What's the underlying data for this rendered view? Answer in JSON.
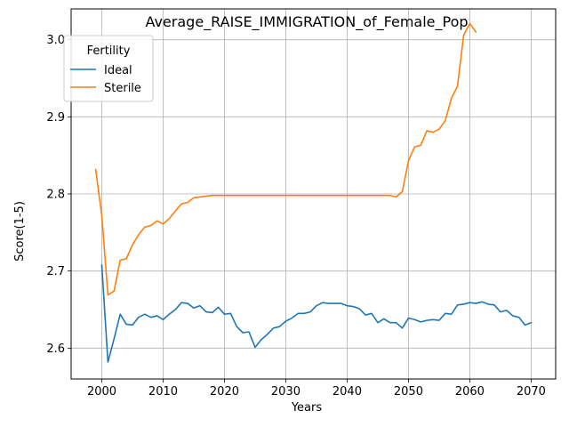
{
  "chart_data": {
    "type": "line",
    "title": "Average_RAISE_IMMIGRATION_of_Female_Pop",
    "xlabel": "Years",
    "ylabel": "Score(1-5)",
    "xlim": [
      1995,
      2074
    ],
    "ylim": [
      2.56,
      3.04
    ],
    "xticks": [
      2000,
      2010,
      2020,
      2030,
      2040,
      2050,
      2060,
      2070
    ],
    "yticks": [
      2.6,
      2.7,
      2.8,
      2.9,
      3.0
    ],
    "xtick_labels": [
      "2000",
      "2010",
      "2020",
      "2030",
      "2040",
      "2050",
      "2060",
      "2070"
    ],
    "ytick_labels": [
      "2.6",
      "2.7",
      "2.8",
      "2.9",
      "3.0"
    ],
    "grid": true,
    "legend": {
      "title": "Fertility",
      "placement": "upper-left"
    },
    "series": [
      {
        "name": "Ideal",
        "color": "#1f77b4",
        "x": [
          2000,
          2001,
          2002,
          2003,
          2004,
          2005,
          2006,
          2007,
          2008,
          2009,
          2010,
          2011,
          2012,
          2013,
          2014,
          2015,
          2016,
          2017,
          2018,
          2019,
          2020,
          2021,
          2022,
          2023,
          2024,
          2025,
          2026,
          2027,
          2028,
          2029,
          2030,
          2031,
          2032,
          2033,
          2034,
          2035,
          2036,
          2037,
          2038,
          2039,
          2040,
          2041,
          2042,
          2043,
          2044,
          2045,
          2046,
          2047,
          2048,
          2049,
          2050,
          2051,
          2052,
          2053,
          2054,
          2055,
          2056,
          2057,
          2058,
          2059,
          2060,
          2061,
          2062,
          2063,
          2064,
          2065,
          2066,
          2067,
          2068,
          2069,
          2070
        ],
        "y": [
          2.708,
          2.582,
          2.612,
          2.644,
          2.631,
          2.63,
          2.64,
          2.644,
          2.64,
          2.642,
          2.637,
          2.644,
          2.65,
          2.659,
          2.658,
          2.652,
          2.655,
          2.647,
          2.646,
          2.653,
          2.644,
          2.645,
          2.628,
          2.62,
          2.621,
          2.601,
          2.611,
          2.618,
          2.626,
          2.628,
          2.635,
          2.639,
          2.645,
          2.645,
          2.647,
          2.655,
          2.659,
          2.658,
          2.658,
          2.658,
          2.655,
          2.654,
          2.651,
          2.643,
          2.645,
          2.633,
          2.638,
          2.633,
          2.633,
          2.626,
          2.639,
          2.637,
          2.634,
          2.636,
          2.637,
          2.636,
          2.645,
          2.644,
          2.656,
          2.657,
          2.659,
          2.658,
          2.66,
          2.657,
          2.656,
          2.647,
          2.649,
          2.642,
          2.64,
          2.63,
          2.633
        ]
      },
      {
        "name": "Sterile",
        "color": "#ff7f0e",
        "x": [
          1999,
          2000,
          2001,
          2002,
          2003,
          2004,
          2005,
          2006,
          2007,
          2008,
          2009,
          2010,
          2011,
          2012,
          2013,
          2014,
          2015,
          2016,
          2017,
          2018,
          2019,
          2020,
          2021,
          2022,
          2023,
          2024,
          2025,
          2026,
          2027,
          2028,
          2029,
          2030,
          2031,
          2032,
          2033,
          2034,
          2035,
          2036,
          2037,
          2038,
          2039,
          2040,
          2041,
          2042,
          2043,
          2044,
          2045,
          2046,
          2047,
          2048,
          2049,
          2050,
          2051,
          2052,
          2053,
          2054,
          2055,
          2056,
          2057,
          2058,
          2059,
          2060,
          2061
        ],
        "y": [
          2.832,
          2.772,
          2.669,
          2.674,
          2.714,
          2.716,
          2.734,
          2.747,
          2.757,
          2.759,
          2.765,
          2.761,
          2.768,
          2.778,
          2.787,
          2.789,
          2.795,
          2.796,
          2.797,
          2.798,
          2.798,
          2.798,
          2.798,
          2.798,
          2.798,
          2.798,
          2.798,
          2.798,
          2.798,
          2.798,
          2.798,
          2.798,
          2.798,
          2.798,
          2.798,
          2.798,
          2.798,
          2.798,
          2.798,
          2.798,
          2.798,
          2.798,
          2.798,
          2.798,
          2.798,
          2.798,
          2.798,
          2.798,
          2.798,
          2.796,
          2.803,
          2.843,
          2.861,
          2.863,
          2.882,
          2.88,
          2.884,
          2.895,
          2.924,
          2.94,
          3.006,
          3.021,
          3.01
        ]
      }
    ]
  }
}
